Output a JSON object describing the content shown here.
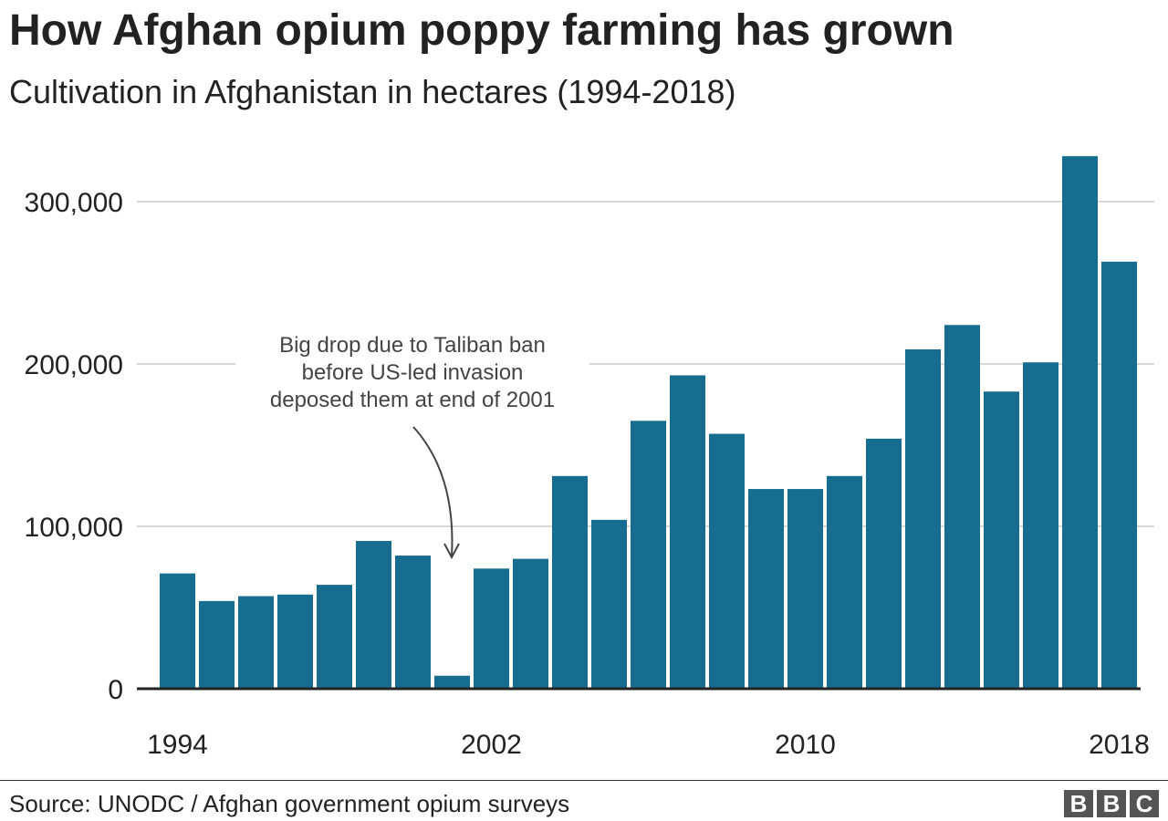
{
  "chart_data": {
    "type": "bar",
    "title": "How Afghan opium poppy farming has grown",
    "subtitle": "Cultivation in Afghanistan in hectares (1994-2018)",
    "categories": [
      "1994",
      "1995",
      "1996",
      "1997",
      "1998",
      "1999",
      "2000",
      "2001",
      "2002",
      "2003",
      "2004",
      "2005",
      "2006",
      "2007",
      "2008",
      "2009",
      "2010",
      "2011",
      "2012",
      "2013",
      "2014",
      "2015",
      "2016",
      "2017",
      "2018"
    ],
    "values": [
      71000,
      54000,
      57000,
      58000,
      64000,
      91000,
      82000,
      8000,
      74000,
      80000,
      131000,
      104000,
      165000,
      193000,
      157000,
      123000,
      123000,
      131000,
      154000,
      209000,
      224000,
      183000,
      201000,
      328000,
      263000
    ],
    "ylim": [
      0,
      330000
    ],
    "yticks": [
      0,
      100000,
      200000,
      300000
    ],
    "ytick_labels": [
      "0",
      "100,000",
      "200,000",
      "300,000"
    ],
    "xtick_labels": [
      "1994",
      "2002",
      "2010",
      "2018"
    ],
    "grid": true,
    "bar_color": "#176d8f",
    "annotation": {
      "lines": [
        "Big drop due to Taliban ban",
        "before US-led invasion",
        "deposed them at end of 2001"
      ],
      "target": "2001"
    }
  },
  "footer": {
    "source": "Source: UNODC / Afghan government opium surveys",
    "logo": [
      "B",
      "B",
      "C"
    ]
  }
}
